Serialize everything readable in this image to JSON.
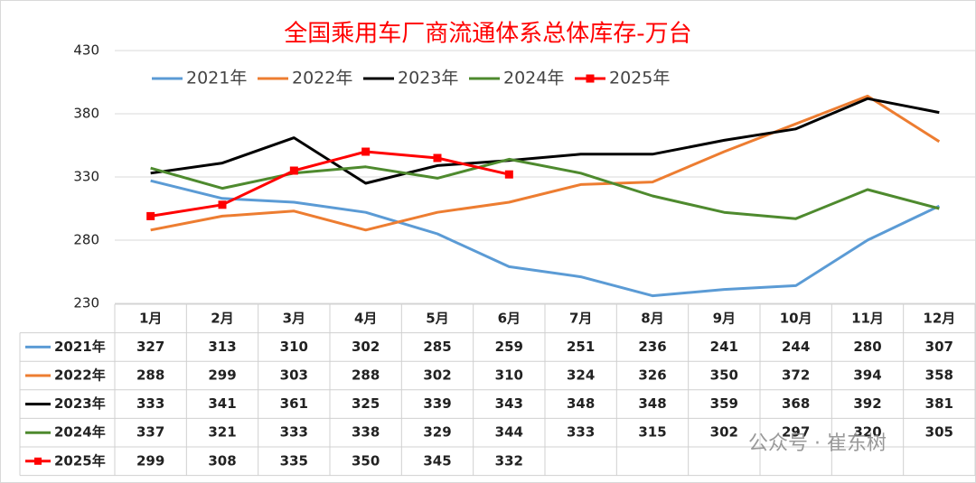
{
  "chart_data": {
    "type": "line",
    "title": "全国乘用车厂商流通体系总体库存-万台",
    "categories": [
      "1月",
      "2月",
      "3月",
      "4月",
      "5月",
      "6月",
      "7月",
      "8月",
      "9月",
      "10月",
      "11月",
      "12月"
    ],
    "series": [
      {
        "name": "2021年",
        "color": "#5b9bd5",
        "values": [
          327,
          313,
          310,
          302,
          285,
          259,
          251,
          236,
          241,
          244,
          280,
          307
        ]
      },
      {
        "name": "2022年",
        "color": "#ed7d31",
        "values": [
          288,
          299,
          303,
          288,
          302,
          310,
          324,
          326,
          350,
          372,
          394,
          358
        ]
      },
      {
        "name": "2023年",
        "color": "#000000",
        "values": [
          333,
          341,
          361,
          325,
          339,
          343,
          348,
          348,
          359,
          368,
          392,
          381
        ]
      },
      {
        "name": "2024年",
        "color": "#4e8a2e",
        "values": [
          337,
          321,
          333,
          338,
          329,
          344,
          333,
          315,
          302,
          297,
          320,
          305
        ]
      },
      {
        "name": "2025年",
        "color": "#ff0000",
        "marker": "square",
        "values": [
          299,
          308,
          335,
          350,
          345,
          332,
          null,
          null,
          null,
          null,
          null,
          null
        ]
      }
    ],
    "ylim": [
      230,
      430
    ],
    "yticks": [
      230,
      280,
      330,
      380,
      430
    ],
    "grid": true,
    "legend": "top",
    "watermark": "公众号 · 崔东树"
  }
}
